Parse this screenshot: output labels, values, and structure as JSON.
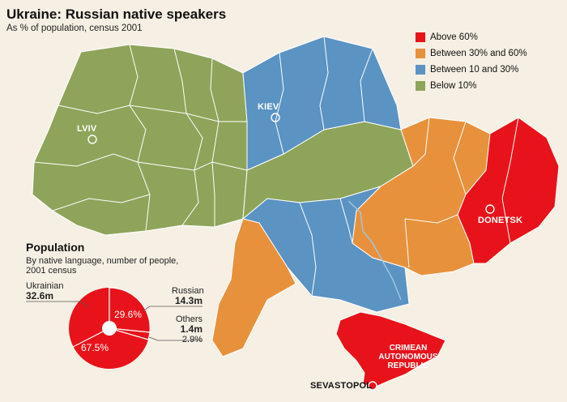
{
  "title": "Ukraine: Russian native speakers",
  "subtitle": "As % of population, census 2001",
  "colors": {
    "above60": "#e8131a",
    "between30_60": "#e8913c",
    "between10_30": "#5b93c2",
    "below10": "#8ea45a",
    "background": "#f6f0e4"
  },
  "legend": [
    {
      "label": "Above 60%",
      "color": "#e8131a"
    },
    {
      "label": "Between 30% and 60%",
      "color": "#e8913c"
    },
    {
      "label": "Between 10 and 30%",
      "color": "#5b93c2"
    },
    {
      "label": "Below 10%",
      "color": "#8ea45a"
    }
  ],
  "cities": {
    "lviv": "LVIV",
    "kiev": "KIEV",
    "donetsk": "DONETSK",
    "sevastopol": "SEVASTOPOL"
  },
  "crimea": {
    "line1": "CRIMEAN",
    "line2": "AUTONOMOUS",
    "line3": "REPUBLIC"
  },
  "population": {
    "title": "Population",
    "subtitle": "By native language, number of people, 2001 census",
    "ukrainian_label": "Ukrainian",
    "ukrainian_value": "32.6m",
    "ukrainian_pct": "67.5%",
    "russian_label": "Russian",
    "russian_value": "14.3m",
    "russian_pct": "29.6%",
    "others_label": "Others",
    "others_value": "1.4m",
    "others_pct": "2.9%"
  }
}
